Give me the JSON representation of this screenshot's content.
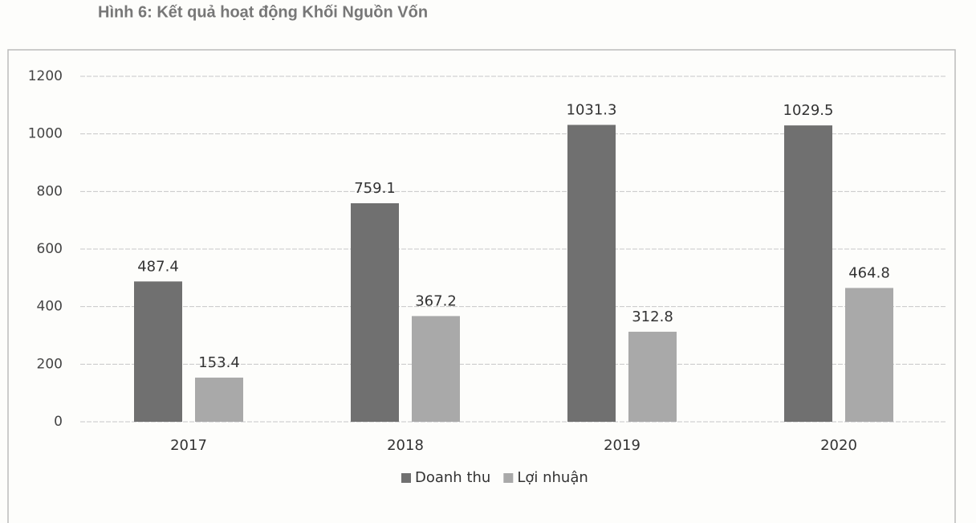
{
  "chart_data": {
    "type": "bar",
    "title": "Hình 6: Kết quả hoạt động Khối Nguồn Vốn",
    "categories": [
      "2017",
      "2018",
      "2019",
      "2020"
    ],
    "series": [
      {
        "name": "Doanh thu",
        "color": "#707070",
        "values": [
          487.4,
          759.1,
          1031.3,
          1029.5
        ]
      },
      {
        "name": "Lợi nhuận",
        "color": "#a9a9a9",
        "values": [
          153.4,
          367.2,
          312.8,
          464.8
        ]
      }
    ],
    "ylim": [
      0,
      1200
    ],
    "yticks": [
      0,
      200,
      400,
      600,
      800,
      1000,
      1200
    ],
    "grid": true,
    "legend": "bottom"
  }
}
